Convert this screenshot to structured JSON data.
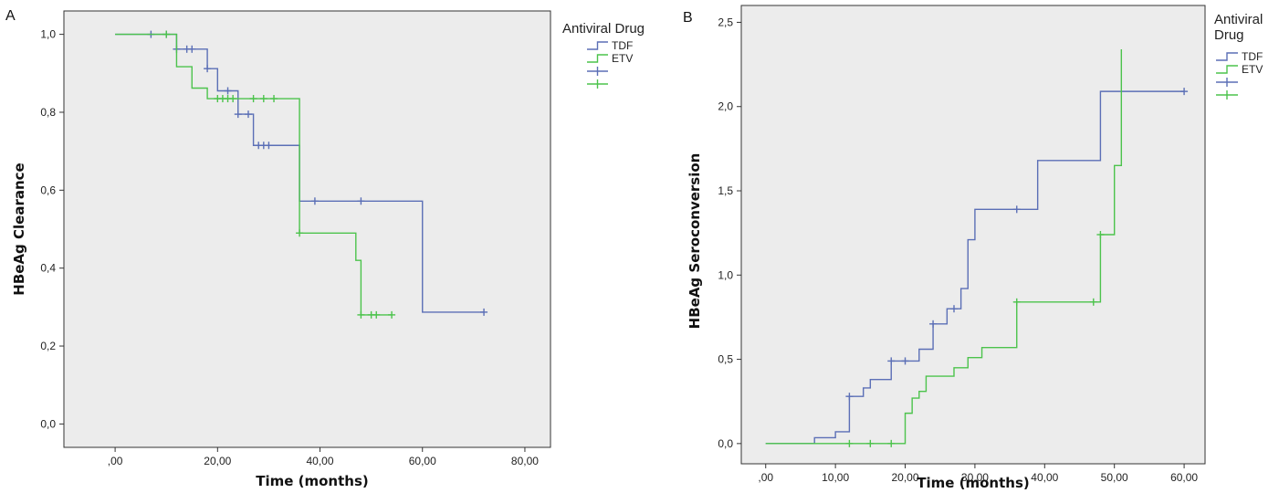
{
  "colors": {
    "plot_bg": "#ececec",
    "tdf": "#5b6fb6",
    "etv": "#4cc34c",
    "axis": "#333333"
  },
  "chart_data": [
    {
      "type": "line",
      "panel_label": "A",
      "ylabel": "HBeAg Clearance",
      "xlabel": "Time (months)",
      "xlim": [
        -10,
        85
      ],
      "ylim": [
        -0.06,
        1.06
      ],
      "xticks": [
        0,
        20,
        40,
        60,
        80
      ],
      "xtick_labels": [
        ",00",
        "20,00",
        "40,00",
        "60,00",
        "80,00"
      ],
      "yticks": [
        0,
        0.2,
        0.4,
        0.6,
        0.8,
        1.0
      ],
      "ytick_labels": [
        "0,0",
        "0,2",
        "0,4",
        "0,6",
        "0,8",
        "1,0"
      ],
      "legend": {
        "title": "Antiviral Drug",
        "title_lines": [
          "Antiviral Drug"
        ],
        "entries": [
          {
            "label": "TDF",
            "color": "#5b6fb6",
            "kind": "step"
          },
          {
            "label": "ETV",
            "color": "#4cc34c",
            "kind": "step"
          },
          {
            "label": "",
            "color": "#5b6fb6",
            "kind": "censor"
          },
          {
            "label": "",
            "color": "#4cc34c",
            "kind": "censor"
          }
        ]
      },
      "series": [
        {
          "name": "TDF",
          "color": "#5b6fb6",
          "steps": [
            [
              0,
              1.0
            ],
            [
              12,
              0.962
            ],
            [
              18,
              0.912
            ],
            [
              20,
              0.855
            ],
            [
              24,
              0.795
            ],
            [
              27,
              0.715
            ],
            [
              36,
              0.572
            ],
            [
              60,
              0.287
            ],
            [
              72,
              0.287
            ]
          ],
          "censored": [
            [
              7,
              1.0
            ],
            [
              10,
              1.0
            ],
            [
              12,
              0.962
            ],
            [
              14,
              0.962
            ],
            [
              15,
              0.962
            ],
            [
              18,
              0.912
            ],
            [
              22,
              0.855
            ],
            [
              24,
              0.795
            ],
            [
              26,
              0.795
            ],
            [
              28,
              0.715
            ],
            [
              29,
              0.715
            ],
            [
              30,
              0.715
            ],
            [
              39,
              0.572
            ],
            [
              48,
              0.572
            ],
            [
              72,
              0.287
            ]
          ]
        },
        {
          "name": "ETV",
          "color": "#4cc34c",
          "steps": [
            [
              0,
              1.0
            ],
            [
              12,
              0.917
            ],
            [
              15,
              0.862
            ],
            [
              18,
              0.835
            ],
            [
              36,
              0.49
            ],
            [
              47,
              0.42
            ],
            [
              48,
              0.28
            ],
            [
              54,
              0.28
            ]
          ],
          "censored": [
            [
              10,
              1.0
            ],
            [
              20,
              0.835
            ],
            [
              21,
              0.835
            ],
            [
              22,
              0.835
            ],
            [
              23,
              0.835
            ],
            [
              27,
              0.835
            ],
            [
              29,
              0.835
            ],
            [
              31,
              0.835
            ],
            [
              36,
              0.49
            ],
            [
              48,
              0.28
            ],
            [
              50,
              0.28
            ],
            [
              51,
              0.28
            ],
            [
              54,
              0.28
            ]
          ]
        }
      ]
    },
    {
      "type": "line",
      "panel_label": "B",
      "ylabel": "HBeAg Seroconversion",
      "xlabel": "Time (months)",
      "xlim": [
        -3.5,
        63
      ],
      "ylim": [
        -0.12,
        2.6
      ],
      "xticks": [
        0,
        10,
        20,
        30,
        40,
        50,
        60
      ],
      "xtick_labels": [
        ",00",
        "10,00",
        "20,00",
        "30,00",
        "40,00",
        "50,00",
        "60,00"
      ],
      "yticks": [
        0,
        0.5,
        1.0,
        1.5,
        2.0,
        2.5
      ],
      "ytick_labels": [
        "0,0",
        "0,5",
        "1,0",
        "1,5",
        "2,0",
        "2,5"
      ],
      "legend": {
        "title": "Antiviral Drug",
        "title_lines": [
          "Antiviral",
          "Drug"
        ],
        "entries": [
          {
            "label": "TDF",
            "color": "#5b6fb6",
            "kind": "step"
          },
          {
            "label": "ETV",
            "color": "#4cc34c",
            "kind": "step"
          },
          {
            "label": "",
            "color": "#5b6fb6",
            "kind": "censor"
          },
          {
            "label": "",
            "color": "#4cc34c",
            "kind": "censor"
          }
        ]
      },
      "series": [
        {
          "name": "TDF",
          "color": "#5b6fb6",
          "steps": [
            [
              0,
              0
            ],
            [
              7,
              0.035
            ],
            [
              10,
              0.07
            ],
            [
              12,
              0.28
            ],
            [
              14,
              0.33
            ],
            [
              15,
              0.38
            ],
            [
              18,
              0.49
            ],
            [
              22,
              0.56
            ],
            [
              24,
              0.71
            ],
            [
              26,
              0.8
            ],
            [
              28,
              0.92
            ],
            [
              29,
              1.21
            ],
            [
              30,
              1.39
            ],
            [
              39,
              1.68
            ],
            [
              48,
              2.09
            ],
            [
              60,
              2.09
            ]
          ],
          "censored": [
            [
              12,
              0.28
            ],
            [
              18,
              0.49
            ],
            [
              20,
              0.49
            ],
            [
              24,
              0.71
            ],
            [
              27,
              0.8
            ],
            [
              36,
              1.39
            ],
            [
              60,
              2.09
            ]
          ]
        },
        {
          "name": "ETV",
          "color": "#4cc34c",
          "steps": [
            [
              0,
              0
            ],
            [
              20,
              0.18
            ],
            [
              21,
              0.27
            ],
            [
              22,
              0.31
            ],
            [
              23,
              0.4
            ],
            [
              27,
              0.45
            ],
            [
              29,
              0.51
            ],
            [
              31,
              0.57
            ],
            [
              36,
              0.84
            ],
            [
              48,
              1.24
            ],
            [
              50,
              1.65
            ],
            [
              51,
              2.34
            ]
          ],
          "censored": [
            [
              12,
              0
            ],
            [
              15,
              0
            ],
            [
              18,
              0
            ],
            [
              36,
              0.84
            ],
            [
              47,
              0.84
            ],
            [
              48,
              1.24
            ]
          ]
        }
      ]
    }
  ]
}
